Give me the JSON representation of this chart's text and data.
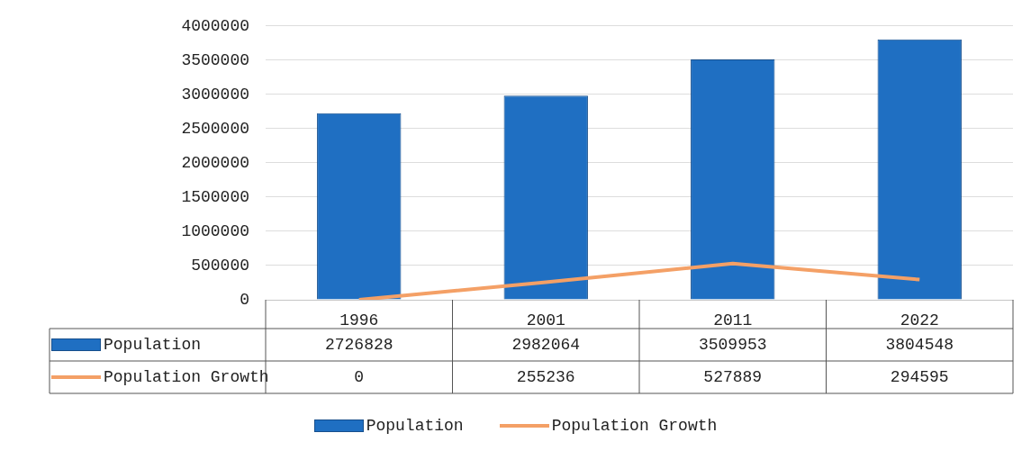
{
  "chart_data": {
    "type": "bar",
    "categories": [
      "1996",
      "2001",
      "2011",
      "2022"
    ],
    "series": [
      {
        "name": "Population",
        "color": "#1f6fc2",
        "values": [
          2726828,
          2982064,
          3509953,
          3804548
        ]
      },
      {
        "name": "Population Growth",
        "type": "line",
        "color": "#f4a066",
        "values": [
          0,
          255236,
          527889,
          294595
        ]
      }
    ],
    "ylim": [
      0,
      4000000
    ],
    "yticks": [
      0,
      500000,
      1000000,
      1500000,
      2000000,
      2500000,
      3000000,
      3500000,
      4000000
    ],
    "grid": "y",
    "legend": "bottom",
    "marker": "none",
    "line_style": "solid",
    "data_labels": true
  }
}
